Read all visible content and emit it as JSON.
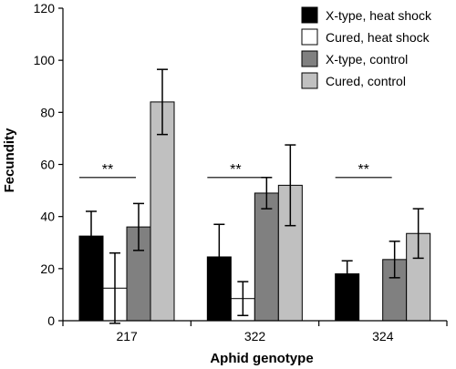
{
  "chart_data": {
    "type": "bar",
    "title": "",
    "xlabel": "Aphid genotype",
    "ylabel": "Fecundity",
    "ylim": [
      0,
      120
    ],
    "yticks": [
      0,
      20,
      40,
      60,
      80,
      100,
      120
    ],
    "categories": [
      "217",
      "322",
      "324"
    ],
    "grid": false,
    "legend_position": "top-right",
    "series": [
      {
        "name": "X-type, heat shock",
        "color": "#000000",
        "values": [
          32.5,
          24.5,
          18
        ],
        "error": [
          9.5,
          12.5,
          5
        ]
      },
      {
        "name": "Cured, heat shock",
        "color": "#ffffff",
        "values": [
          12.5,
          8.5,
          null
        ],
        "error": [
          13.5,
          6.5,
          null
        ]
      },
      {
        "name": "X-type, control",
        "color": "#808080",
        "values": [
          36,
          49,
          23.5
        ],
        "error": [
          9,
          6,
          7
        ]
      },
      {
        "name": "Cured, control",
        "color": "#c0c0c0",
        "values": [
          84,
          52,
          33.5
        ],
        "error": [
          12.5,
          15.5,
          9.5
        ]
      }
    ],
    "annotations": [
      {
        "category": "217",
        "text": "**"
      },
      {
        "category": "322",
        "text": "**"
      },
      {
        "category": "324",
        "text": "**"
      }
    ]
  }
}
